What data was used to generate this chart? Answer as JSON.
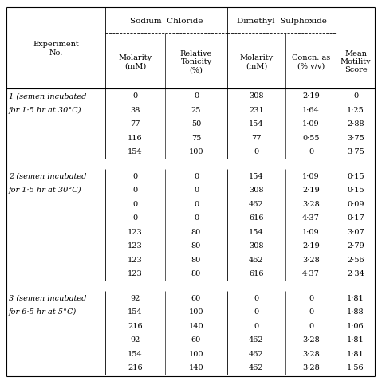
{
  "col_headers": [
    "Molarity\n(mM)",
    "Relative\nTonicity\n(%)",
    "Molarity\n(mM)",
    "Concn. as\n(% v/v)",
    "Mean\nMotility\nScore"
  ],
  "row_label_header": "Experiment\nNo.",
  "sections": [
    {
      "label_line1": "1 (semen incubated",
      "label_line2": "for 1·5 hr at 30°C)",
      "rows": [
        [
          "0",
          "0",
          "308",
          "2·19",
          "0"
        ],
        [
          "38",
          "25",
          "231",
          "1·64",
          "1·25"
        ],
        [
          "77",
          "50",
          "154",
          "1·09",
          "2·88"
        ],
        [
          "116",
          "75",
          "77",
          "0·55",
          "3·75"
        ],
        [
          "154",
          "100",
          "0",
          "0",
          "3·75"
        ]
      ]
    },
    {
      "label_line1": "2 (semen incubated",
      "label_line2": "for 1·5 hr at 30°C)",
      "rows": [
        [
          "0",
          "0",
          "154",
          "1·09",
          "0·15"
        ],
        [
          "0",
          "0",
          "308",
          "2·19",
          "0·15"
        ],
        [
          "0",
          "0",
          "462",
          "3·28",
          "0·09"
        ],
        [
          "0",
          "0",
          "616",
          "4·37",
          "0·17"
        ],
        [
          "123",
          "80",
          "154",
          "1·09",
          "3·07"
        ],
        [
          "123",
          "80",
          "308",
          "2·19",
          "2·79"
        ],
        [
          "123",
          "80",
          "462",
          "3·28",
          "2·56"
        ],
        [
          "123",
          "80",
          "616",
          "4·37",
          "2·34"
        ]
      ]
    },
    {
      "label_line1": "3 (semen incubated",
      "label_line2": "for 6·5 hr at 5°C)",
      "rows": [
        [
          "92",
          "60",
          "0",
          "0",
          "1·81"
        ],
        [
          "154",
          "100",
          "0",
          "0",
          "1·88"
        ],
        [
          "216",
          "140",
          "0",
          "0",
          "1·06"
        ],
        [
          "92",
          "60",
          "462",
          "3·28",
          "1·81"
        ],
        [
          "154",
          "100",
          "462",
          "3·28",
          "1·81"
        ],
        [
          "216",
          "140",
          "462",
          "3·28",
          "1·56"
        ]
      ]
    }
  ],
  "bg_color": "#ffffff",
  "text_color": "#000000"
}
